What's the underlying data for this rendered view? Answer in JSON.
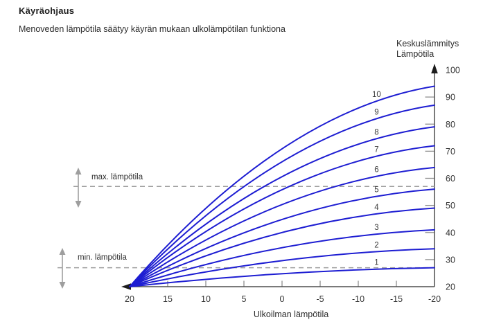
{
  "header": {
    "title": "Käyräohjaus",
    "subtitle": "Menoveden lämpötila säätyy käyrän mukaan ulkolämpötilan funktiona"
  },
  "chart_data": {
    "type": "line",
    "title": "Käyräohjaus",
    "xlabel": "Ulkoilman lämpötila",
    "ylabel_lines": [
      "Keskuslämmitys",
      "Lämpötila"
    ],
    "x_ticks": [
      20,
      15,
      10,
      5,
      0,
      -5,
      -10,
      -15,
      -20
    ],
    "y_ticks": [
      20,
      30,
      40,
      50,
      60,
      70,
      80,
      90,
      100
    ],
    "xlim": [
      20,
      -20
    ],
    "ylim": [
      20,
      100
    ],
    "x_axis_reversed": true,
    "grid": false,
    "legend_position": "curve-labels-inline",
    "colors": {
      "curve": "#1d1dd2",
      "annotation": "#9e9e9e",
      "axis": "#4f4f4f",
      "tick": "#8f8f8f",
      "text": "#333333"
    },
    "series": [
      {
        "name": "1",
        "x": [
          20,
          0,
          -20
        ],
        "y": [
          20,
          24.8,
          27
        ]
      },
      {
        "name": "2",
        "x": [
          20,
          0,
          -20
        ],
        "y": [
          20,
          29.6,
          34
        ]
      },
      {
        "name": "3",
        "x": [
          20,
          0,
          -20
        ],
        "y": [
          20,
          34.4,
          41
        ]
      },
      {
        "name": "4",
        "x": [
          20,
          0,
          -20
        ],
        "y": [
          20,
          40.0,
          49
        ]
      },
      {
        "name": "5",
        "x": [
          20,
          0,
          -20
        ],
        "y": [
          20,
          44.8,
          56
        ]
      },
      {
        "name": "6",
        "x": [
          20,
          0,
          -20
        ],
        "y": [
          20,
          50.3,
          64
        ]
      },
      {
        "name": "7",
        "x": [
          20,
          0,
          -20
        ],
        "y": [
          20,
          55.8,
          72
        ]
      },
      {
        "name": "8",
        "x": [
          20,
          0,
          -20
        ],
        "y": [
          20,
          60.6,
          79
        ]
      },
      {
        "name": "9",
        "x": [
          20,
          0,
          -20
        ],
        "y": [
          20,
          66.1,
          87
        ]
      },
      {
        "name": "10",
        "x": [
          20,
          0,
          -20
        ],
        "y": [
          20,
          70.9,
          94
        ]
      }
    ],
    "annotations": [
      {
        "label": "max. lämpötila",
        "value": 57
      },
      {
        "label": "min. lämpötila",
        "value": 27
      }
    ]
  }
}
